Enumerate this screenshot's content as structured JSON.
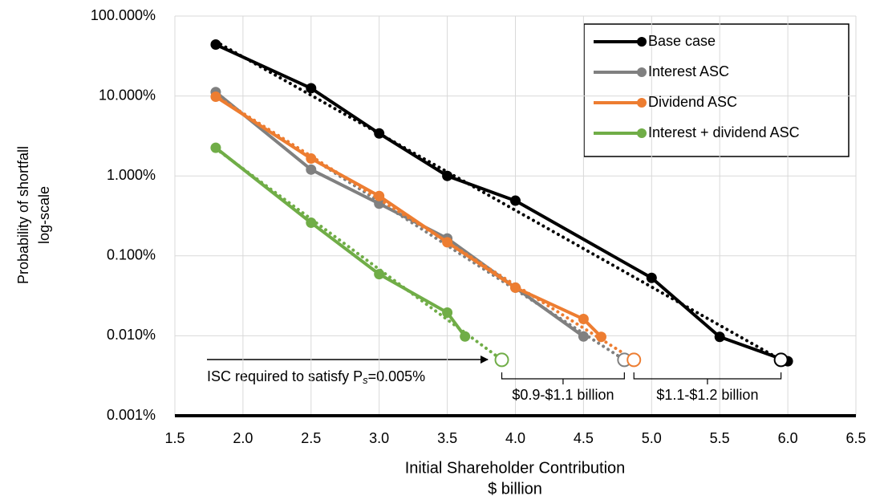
{
  "chart_data": {
    "type": "line",
    "ylabel": [
      "Probability of shortfall",
      "log-scale"
    ],
    "xlabel": [
      "Initial Shareholder Contribution",
      "$ billion"
    ],
    "yscale": "log",
    "ylim": [
      0.001,
      100
    ],
    "yticks": [
      {
        "value": 100,
        "label": "100.000%"
      },
      {
        "value": 10,
        "label": "10.000%"
      },
      {
        "value": 1,
        "label": "1.000%"
      },
      {
        "value": 0.1,
        "label": "0.100%"
      },
      {
        "value": 0.01,
        "label": "0.010%"
      },
      {
        "value": 0.001,
        "label": "0.001%"
      }
    ],
    "xlim": [
      1.5,
      6.5
    ],
    "xticks": [
      1.5,
      {
        "value": 2,
        "label": "2.0"
      },
      2.5,
      {
        "value": 3,
        "label": "3.0"
      },
      3.5,
      {
        "value": 4,
        "label": "4.0"
      },
      4.5,
      {
        "value": 5,
        "label": "5.0"
      },
      5.5,
      {
        "value": 6,
        "label": "6.0"
      },
      6.5
    ],
    "grid": true,
    "legend": "upper right",
    "series": [
      {
        "name": "Base case",
        "color": "#000000",
        "x": [
          1.8,
          2.5,
          3.0,
          3.5,
          4.0,
          5.0,
          5.5,
          6.0
        ],
        "values": [
          44,
          12.5,
          3.4,
          1.0,
          0.49,
          0.053,
          0.0097,
          0.0048
        ],
        "trend_x": [
          1.8,
          5.95
        ],
        "trend_values": [
          48,
          0.005
        ]
      },
      {
        "name": "Interest ASC",
        "color": "#808080",
        "x": [
          1.8,
          2.5,
          3.0,
          3.5,
          4.0,
          4.5
        ],
        "values": [
          11.2,
          1.2,
          0.45,
          0.165,
          0.04,
          0.0098
        ],
        "trend_x": [
          1.8,
          4.8
        ],
        "trend_values": [
          10,
          0.005
        ]
      },
      {
        "name": "Dividend ASC",
        "color": "#ed7d31",
        "x": [
          1.8,
          2.5,
          3.0,
          3.5,
          4.0,
          4.5,
          4.63
        ],
        "values": [
          9.8,
          1.65,
          0.56,
          0.148,
          0.04,
          0.0162,
          0.0097
        ],
        "trend_x": [
          1.8,
          4.87
        ],
        "trend_values": [
          10,
          0.005
        ]
      },
      {
        "name": "Interest + dividend ASC",
        "color": "#70ad47",
        "x": [
          1.8,
          2.5,
          3.0,
          3.5,
          3.63
        ],
        "values": [
          2.25,
          0.26,
          0.059,
          0.0195,
          0.0098
        ],
        "trend_x": [
          1.8,
          3.9
        ],
        "trend_values": [
          2.2,
          0.005
        ]
      }
    ],
    "required_points": {
      "x": [
        3.9,
        4.8,
        4.87,
        5.95
      ],
      "values": [
        0.005,
        0.005,
        0.005,
        0.005
      ],
      "colors": [
        "#70ad47",
        "#808080",
        "#ed7d31",
        "#000000"
      ]
    },
    "annotation": {
      "text": "ISC required to satisfy P",
      "subscript": "s",
      "text_after": "=0.005%"
    },
    "brace_labels": [
      "$0.9-$1.1 billion",
      "$1.1-$1.2 billion"
    ]
  }
}
